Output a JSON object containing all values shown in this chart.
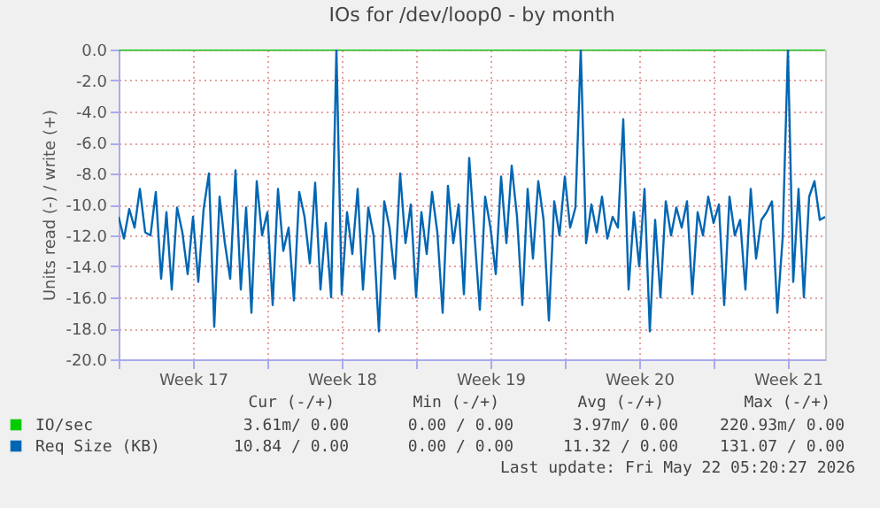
{
  "chart_data": {
    "type": "line",
    "title": "IOs for /dev/loop0 - by month",
    "ylabel": "Units read (-) / write (+)",
    "xlim": [
      "2026-04-20T00:00",
      "2026-05-23T06:00"
    ],
    "xticks": [
      {
        "value": "2026-04-20T00:00",
        "label": null
      },
      {
        "value": "2026-04-23T12:00",
        "label": "Week 17"
      },
      {
        "value": "2026-04-27T00:00",
        "label": null
      },
      {
        "value": "2026-04-30T12:00",
        "label": "Week 18"
      },
      {
        "value": "2026-05-04T00:00",
        "label": null
      },
      {
        "value": "2026-05-07T12:00",
        "label": "Week 19"
      },
      {
        "value": "2026-05-11T00:00",
        "label": null
      },
      {
        "value": "2026-05-14T12:00",
        "label": "Week 20"
      },
      {
        "value": "2026-05-18T00:00",
        "label": null
      },
      {
        "value": "2026-05-21T12:00",
        "label": "Week 21"
      }
    ],
    "ylim": [
      -20,
      0
    ],
    "yticks": [
      {
        "value": -20,
        "label": "-20.0"
      },
      {
        "value": -18,
        "label": "-18.0"
      },
      {
        "value": -16,
        "label": "-16.0"
      },
      {
        "value": -14,
        "label": "-14.0"
      },
      {
        "value": -12,
        "label": "-12.0"
      },
      {
        "value": -10,
        "label": "-10.0"
      },
      {
        "value": -8,
        "label": "-8.0"
      },
      {
        "value": -6,
        "label": "-6.0"
      },
      {
        "value": -4,
        "label": "-4.0"
      },
      {
        "value": -2,
        "label": "-2.0"
      },
      {
        "value": 0,
        "label": "0.0"
      }
    ],
    "grid": true,
    "legend": "bottom",
    "series": [
      {
        "name": "IO/sec",
        "color": "#00cc00",
        "x": [
          "2026-04-20T00:00",
          "2026-05-23T06:00"
        ],
        "values": [
          0,
          0
        ]
      },
      {
        "name": "Req Size (KB)",
        "color": "#0066b3",
        "x": [
          "2026-04-20T00:00",
          "2026-04-20T06:00",
          "2026-04-20T12:00",
          "2026-04-20T18:00",
          "2026-04-21T00:00",
          "2026-04-21T06:00",
          "2026-04-21T12:00",
          "2026-04-21T18:00",
          "2026-04-22T00:00",
          "2026-04-22T06:00",
          "2026-04-22T12:00",
          "2026-04-22T18:00",
          "2026-04-23T00:00",
          "2026-04-23T06:00",
          "2026-04-23T12:00",
          "2026-04-23T18:00",
          "2026-04-24T00:00",
          "2026-04-24T06:00",
          "2026-04-24T12:00",
          "2026-04-24T18:00",
          "2026-04-25T00:00",
          "2026-04-25T06:00",
          "2026-04-25T12:00",
          "2026-04-25T18:00",
          "2026-04-26T00:00",
          "2026-04-26T06:00",
          "2026-04-26T12:00",
          "2026-04-26T18:00",
          "2026-04-27T00:00",
          "2026-04-27T06:00",
          "2026-04-27T12:00",
          "2026-04-27T18:00",
          "2026-04-28T00:00",
          "2026-04-28T06:00",
          "2026-04-28T12:00",
          "2026-04-28T18:00",
          "2026-04-29T00:00",
          "2026-04-29T06:00",
          "2026-04-29T12:00",
          "2026-04-29T18:00",
          "2026-04-30T00:00",
          "2026-04-30T06:00",
          "2026-04-30T12:00",
          "2026-04-30T18:00",
          "2026-05-01T00:00",
          "2026-05-01T06:00",
          "2026-05-01T12:00",
          "2026-05-01T18:00",
          "2026-05-02T00:00",
          "2026-05-02T06:00",
          "2026-05-02T12:00",
          "2026-05-02T18:00",
          "2026-05-03T00:00",
          "2026-05-03T06:00",
          "2026-05-03T12:00",
          "2026-05-03T18:00",
          "2026-05-04T00:00",
          "2026-05-04T06:00",
          "2026-05-04T12:00",
          "2026-05-04T18:00",
          "2026-05-05T00:00",
          "2026-05-05T06:00",
          "2026-05-05T12:00",
          "2026-05-05T18:00",
          "2026-05-06T00:00",
          "2026-05-06T06:00",
          "2026-05-06T12:00",
          "2026-05-06T18:00",
          "2026-05-07T00:00",
          "2026-05-07T06:00",
          "2026-05-07T12:00",
          "2026-05-07T18:00",
          "2026-05-08T00:00",
          "2026-05-08T06:00",
          "2026-05-08T12:00",
          "2026-05-08T18:00",
          "2026-05-09T00:00",
          "2026-05-09T06:00",
          "2026-05-09T12:00",
          "2026-05-09T18:00",
          "2026-05-10T00:00",
          "2026-05-10T06:00",
          "2026-05-10T12:00",
          "2026-05-10T18:00",
          "2026-05-11T00:00",
          "2026-05-11T06:00",
          "2026-05-11T12:00",
          "2026-05-11T18:00",
          "2026-05-12T00:00",
          "2026-05-12T06:00",
          "2026-05-12T12:00",
          "2026-05-12T18:00",
          "2026-05-13T00:00",
          "2026-05-13T06:00",
          "2026-05-13T12:00",
          "2026-05-13T18:00",
          "2026-05-14T00:00",
          "2026-05-14T06:00",
          "2026-05-14T12:00",
          "2026-05-14T18:00",
          "2026-05-15T00:00",
          "2026-05-15T06:00",
          "2026-05-15T12:00",
          "2026-05-15T18:00",
          "2026-05-16T00:00",
          "2026-05-16T06:00",
          "2026-05-16T12:00",
          "2026-05-16T18:00",
          "2026-05-17T00:00",
          "2026-05-17T06:00",
          "2026-05-17T12:00",
          "2026-05-17T18:00",
          "2026-05-18T00:00",
          "2026-05-18T06:00",
          "2026-05-18T12:00",
          "2026-05-18T18:00",
          "2026-05-19T00:00",
          "2026-05-19T06:00",
          "2026-05-19T12:00",
          "2026-05-19T18:00",
          "2026-05-20T00:00",
          "2026-05-20T06:00",
          "2026-05-20T12:00",
          "2026-05-20T18:00",
          "2026-05-21T00:00",
          "2026-05-21T06:00",
          "2026-05-21T12:00",
          "2026-05-21T18:00",
          "2026-05-22T00:00",
          "2026-05-22T06:00",
          "2026-05-22T12:00",
          "2026-05-22T18:00",
          "2026-05-23T00:00",
          "2026-05-23T06:00"
        ],
        "values": [
          -10.8,
          -12.2,
          -10.3,
          -11.5,
          -9.0,
          -11.8,
          -12.0,
          -9.2,
          -14.8,
          -10.5,
          -15.5,
          -10.2,
          -11.8,
          -14.5,
          -10.8,
          -15.0,
          -10.3,
          -8.0,
          -17.9,
          -9.5,
          -12.5,
          -14.8,
          -7.8,
          -15.5,
          -10.2,
          -17.0,
          -8.5,
          -12.0,
          -10.5,
          -16.5,
          -9.0,
          -13.0,
          -11.5,
          -16.2,
          -9.2,
          -10.8,
          -13.8,
          -8.6,
          -15.5,
          -11.2,
          -16.0,
          0.0,
          -15.8,
          -10.5,
          -13.2,
          -9.0,
          -15.5,
          -10.2,
          -12.0,
          -18.2,
          -9.8,
          -11.5,
          -14.8,
          -8.0,
          -12.5,
          -10.0,
          -16.0,
          -10.5,
          -13.2,
          -9.2,
          -11.8,
          -17.0,
          -8.8,
          -12.5,
          -10.0,
          -15.8,
          -7.0,
          -12.0,
          -16.8,
          -9.5,
          -11.5,
          -14.5,
          -8.2,
          -12.5,
          -7.5,
          -10.8,
          -16.5,
          -9.0,
          -13.5,
          -8.5,
          -11.0,
          -17.5,
          -9.8,
          -12.0,
          -8.2,
          -11.5,
          -10.2,
          0.0,
          -12.5,
          -10.0,
          -11.8,
          -9.5,
          -12.2,
          -10.8,
          -11.5,
          -4.5,
          -15.5,
          -10.5,
          -14.0,
          -9.0,
          -18.2,
          -11.0,
          -16.0,
          -9.8,
          -12.0,
          -10.2,
          -11.5,
          -9.8,
          -15.8,
          -10.5,
          -12.0,
          -9.5,
          -11.2,
          -10.0,
          -16.5,
          -9.5,
          -12.0,
          -11.0,
          -15.5,
          -9.0,
          -13.5,
          -11.0,
          -10.5,
          -9.8,
          -17.0,
          -12.2,
          0.0,
          -15.0,
          -9.0,
          -16.0,
          -9.5,
          -8.5,
          -11.0,
          -10.8
        ]
      }
    ],
    "annotations": [
      "Cur (-/+)",
      "Min (-/+)",
      "Avg (-/+)",
      "Max (-/+)",
      "3.61m/ 0.00",
      "0.00 / 0.00",
      "3.97m/ 0.00",
      "220.93m/ 0.00",
      "10.84 / 0.00",
      "0.00 / 0.00",
      "11.32 / 0.00",
      "131.07 / 0.00",
      "Last update: Fri May 22 05:20:27 2026"
    ]
  }
}
